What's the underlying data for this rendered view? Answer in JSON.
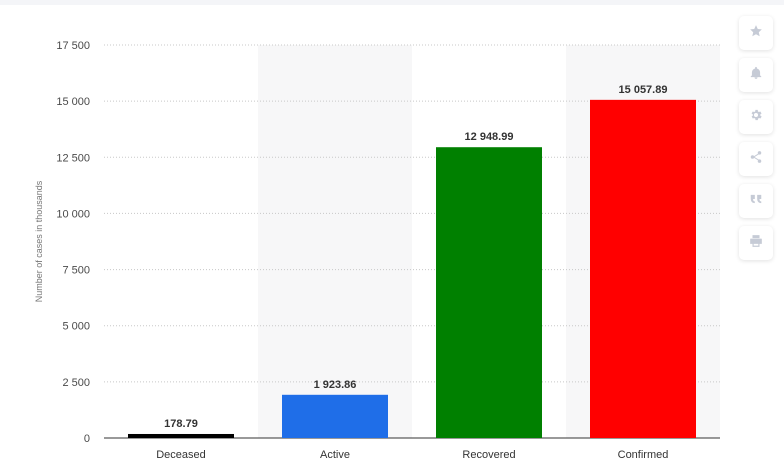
{
  "chart_data": {
    "type": "bar",
    "categories": [
      "Deceased",
      "Active",
      "Recovered",
      "Confirmed"
    ],
    "values": [
      178.79,
      1923.86,
      12948.99,
      15057.89
    ],
    "data_labels": [
      "178.79",
      "1 923.86",
      "12 948.99",
      "15 057.89"
    ],
    "colors": [
      "#000000",
      "#1f6ee8",
      "#008000",
      "#ff0000"
    ],
    "ylabel": "Number of cases in thousands",
    "xlabel": "",
    "ylim": [
      0,
      17500
    ],
    "yticks": [
      0,
      2500,
      5000,
      7500,
      10000,
      12500,
      15000,
      17500
    ],
    "ytick_labels": [
      "0",
      "2 500",
      "5 000",
      "7 500",
      "10 000",
      "12 500",
      "15 000",
      "17 500"
    ],
    "grid": true,
    "legend": "none"
  },
  "toolbar": {
    "icons": [
      "star-icon",
      "bell-icon",
      "gear-icon",
      "share-icon",
      "quote-icon",
      "print-icon"
    ]
  },
  "colors": {
    "alt_band": "#f7f7f8",
    "grid": "#c8c8c8",
    "toolbar_icon": "#c6cbd6"
  }
}
